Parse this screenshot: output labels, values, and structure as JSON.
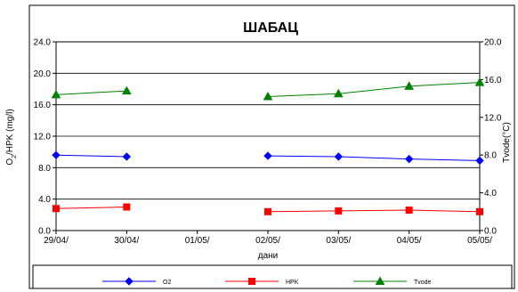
{
  "chart_data": {
    "type": "line",
    "title": "ШАБАЦ",
    "xlabel": "дани",
    "ylabel_left_main": "O",
    "ylabel_left_sub": "2",
    "ylabel_left_rest": "/HPK (mg/l)",
    "ylabel_right": "Tvode(°C)",
    "categories": [
      "29/04/",
      "30/04/",
      "01/05/",
      "02/05/",
      "03/05/",
      "04/05/",
      "05/05/"
    ],
    "ylim_left": [
      0,
      24
    ],
    "yticks_left": [
      "0.0",
      "4.0",
      "8.0",
      "12.0",
      "16.0",
      "20.0",
      "24.0"
    ],
    "ylim_right": [
      0,
      20
    ],
    "yticks_right": [
      "0.0",
      "4.0",
      "8.0",
      "12.0",
      "16.0",
      "20.0"
    ],
    "grid": true,
    "legend_position": "bottom",
    "series": [
      {
        "name": "O2",
        "axis": "left",
        "color": "#0000ff",
        "marker": "diamond",
        "values": [
          9.6,
          9.4,
          null,
          9.5,
          9.4,
          9.1,
          8.9
        ]
      },
      {
        "name": "HPK",
        "axis": "left",
        "color": "#ff0000",
        "marker": "square",
        "values": [
          2.8,
          3.0,
          null,
          2.4,
          2.5,
          2.6,
          2.4
        ]
      },
      {
        "name": "Tvode",
        "axis": "right",
        "color": "#008000",
        "marker": "triangle",
        "values": [
          14.4,
          14.8,
          null,
          14.2,
          14.5,
          15.3,
          15.7
        ]
      }
    ]
  }
}
